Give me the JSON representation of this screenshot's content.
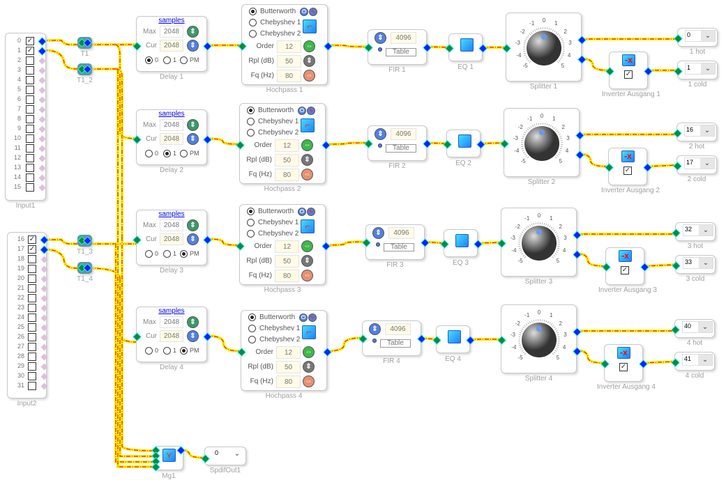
{
  "inputs": [
    {
      "name": "Input1",
      "channels": [
        "0",
        "1",
        "2",
        "3",
        "4",
        "5",
        "6",
        "7",
        "8",
        "9",
        "10",
        "11",
        "12",
        "13",
        "14",
        "15"
      ],
      "checked": [
        true,
        true,
        false,
        false,
        false,
        false,
        false,
        false,
        false,
        false,
        false,
        false,
        false,
        false,
        false,
        false
      ]
    },
    {
      "name": "Input2",
      "channels": [
        "16",
        "17",
        "18",
        "19",
        "20",
        "21",
        "22",
        "23",
        "24",
        "25",
        "26",
        "27",
        "28",
        "29",
        "30",
        "31"
      ],
      "checked": [
        true,
        true,
        false,
        false,
        false,
        false,
        false,
        false,
        false,
        false,
        false,
        false,
        false,
        false,
        false,
        false
      ]
    }
  ],
  "taps": [
    "T1",
    "T1_2",
    "T1_3",
    "T1_4"
  ],
  "rows": [
    {
      "delay": {
        "name": "Delay 1",
        "unit": "samples",
        "max_label": "Max",
        "max": "2048",
        "cur_label": "Cur",
        "cur": "2048",
        "modes": [
          "0",
          "1",
          "PM"
        ],
        "selected": "0"
      },
      "hochpass": {
        "name": "Hochpass 1",
        "types": [
          "Butterworth",
          "Chebyshev 1",
          "Chebyshev 2"
        ],
        "selected": "Butterworth",
        "order_label": "Order",
        "order": "12",
        "rpl_label": "Rpl (dB)",
        "rpl": "50",
        "fq_label": "Fq (Hz)",
        "fq": "80"
      },
      "fir": {
        "name": "FIR 1",
        "taps": "4096",
        "table_label": "Table"
      },
      "eq": "EQ 1",
      "splitter": "Splitter 1",
      "inverter": {
        "name": "Inverter Ausgang 1",
        "checked": true
      },
      "hot": {
        "name": "1 hot",
        "value": "0"
      },
      "cold": {
        "name": "1 cold",
        "value": "1"
      }
    },
    {
      "delay": {
        "name": "Delay 2",
        "unit": "samples",
        "max_label": "Max",
        "max": "2048",
        "cur_label": "Cur",
        "cur": "2048",
        "modes": [
          "0",
          "1",
          "PM"
        ],
        "selected": "1"
      },
      "hochpass": {
        "name": "Hochpass 2",
        "types": [
          "Butterworth",
          "Chebyshev 1",
          "Chebyshev 2"
        ],
        "selected": "Butterworth",
        "order_label": "Order",
        "order": "12",
        "rpl_label": "Rpl (dB)",
        "rpl": "50",
        "fq_label": "Fq (Hz)",
        "fq": "80"
      },
      "fir": {
        "name": "FIR 2",
        "taps": "4096",
        "table_label": "Table"
      },
      "eq": "EQ 2",
      "splitter": "Splitter 2",
      "inverter": {
        "name": "Inverter Ausgang 2",
        "checked": true
      },
      "hot": {
        "name": "2 hot",
        "value": "16"
      },
      "cold": {
        "name": "2 cold",
        "value": "17"
      }
    },
    {
      "delay": {
        "name": "Delay 3",
        "unit": "samples",
        "max_label": "Max",
        "max": "2048",
        "cur_label": "Cur",
        "cur": "2048",
        "modes": [
          "0",
          "1",
          "PM"
        ],
        "selected": "PM"
      },
      "hochpass": {
        "name": "Hochpass 3",
        "types": [
          "Butterworth",
          "Chebyshev 1",
          "Chebyshev 2"
        ],
        "selected": "Butterworth",
        "order_label": "Order",
        "order": "12",
        "rpl_label": "Rpl (dB)",
        "rpl": "50",
        "fq_label": "Fq (Hz)",
        "fq": "80"
      },
      "fir": {
        "name": "FIR 3",
        "taps": "4096",
        "table_label": "Table"
      },
      "eq": "EQ 3",
      "splitter": "Splitter 3",
      "inverter": {
        "name": "Inverter Ausgang 3",
        "checked": true
      },
      "hot": {
        "name": "3 hot",
        "value": "32"
      },
      "cold": {
        "name": "3 cold",
        "value": "33"
      }
    },
    {
      "delay": {
        "name": "Delay 4",
        "unit": "samples",
        "max_label": "Max",
        "max": "2048",
        "cur_label": "Cur",
        "cur": "2048",
        "modes": [
          "0",
          "1",
          "PM"
        ],
        "selected": "PM"
      },
      "hochpass": {
        "name": "Hochpass 4",
        "types": [
          "Butterworth",
          "Chebyshev 1",
          "Chebyshev 2"
        ],
        "selected": "Butterworth",
        "order_label": "Order",
        "order": "12",
        "rpl_label": "Rpl (dB)",
        "rpl": "50",
        "fq_label": "Fq (Hz)",
        "fq": "80"
      },
      "fir": {
        "name": "FIR 4",
        "taps": "4096",
        "table_label": "Table"
      },
      "eq": "EQ 4",
      "splitter": "Splitter 4",
      "inverter": {
        "name": "Inverter Ausgang 4",
        "checked": true
      },
      "hot": {
        "name": "4 hot",
        "value": "40"
      },
      "cold": {
        "name": "4 cold",
        "value": "41"
      }
    }
  ],
  "knob_scale": [
    "-5",
    "-4",
    "-3",
    "-2",
    "-1",
    "0",
    "1",
    "2",
    "3",
    "4",
    "5"
  ],
  "merger": {
    "name": "Mg1"
  },
  "spdif": {
    "name": "SpdifOut1",
    "value": "0"
  },
  "colors": {
    "wire_outer": "#ffee00",
    "wire_inner": "#e02020",
    "port_in": "#0a8a3a",
    "port_out": "#1020ff"
  }
}
